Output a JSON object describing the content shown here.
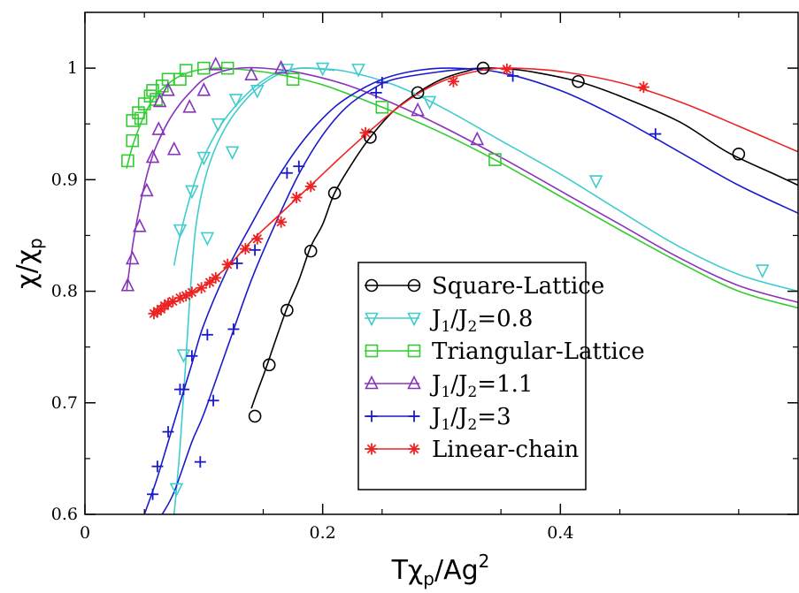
{
  "chart_data": {
    "type": "line",
    "xlabel": {
      "base": "Tχ",
      "sub": "p",
      "rest": "/Ag",
      "sup": "2"
    },
    "ylabel": {
      "base": "χ/χ",
      "sub": "p"
    },
    "xlim": [
      0,
      0.6
    ],
    "ylim": [
      0.6,
      1.05
    ],
    "x_ticks": [
      {
        "v": 0,
        "label": "0"
      },
      {
        "v": 0.2,
        "label": "0.2"
      },
      {
        "v": 0.4,
        "label": "0.4"
      }
    ],
    "y_ticks": [
      {
        "v": 0.6,
        "label": "0.6"
      },
      {
        "v": 0.7,
        "label": "0.7"
      },
      {
        "v": 0.8,
        "label": "0.8"
      },
      {
        "v": 0.9,
        "label": "0.9"
      },
      {
        "v": 1.0,
        "label": "1"
      }
    ],
    "grid": false,
    "legend_position": "lower-right",
    "series": [
      {
        "name": "Square-Lattice",
        "legend": {
          "base": "Square-Lattice"
        },
        "color": "#000000",
        "marker": "circle",
        "line_points": [
          [
            0.14,
            0.695
          ],
          [
            0.145,
            0.71
          ],
          [
            0.152,
            0.73
          ],
          [
            0.16,
            0.755
          ],
          [
            0.17,
            0.785
          ],
          [
            0.18,
            0.81
          ],
          [
            0.19,
            0.84
          ],
          [
            0.2,
            0.86
          ],
          [
            0.21,
            0.888
          ],
          [
            0.225,
            0.915
          ],
          [
            0.24,
            0.938
          ],
          [
            0.26,
            0.962
          ],
          [
            0.28,
            0.978
          ],
          [
            0.3,
            0.99
          ],
          [
            0.32,
            0.997
          ],
          [
            0.335,
            1.0
          ],
          [
            0.36,
            0.999
          ],
          [
            0.38,
            0.996
          ],
          [
            0.415,
            0.988
          ],
          [
            0.45,
            0.975
          ],
          [
            0.5,
            0.952
          ],
          [
            0.54,
            0.925
          ],
          [
            0.58,
            0.905
          ],
          [
            0.6,
            0.895
          ]
        ],
        "markers": [
          [
            0.143,
            0.688
          ],
          [
            0.155,
            0.734
          ],
          [
            0.17,
            0.783
          ],
          [
            0.19,
            0.836
          ],
          [
            0.21,
            0.888
          ],
          [
            0.24,
            0.938
          ],
          [
            0.28,
            0.978
          ],
          [
            0.335,
            1.0
          ],
          [
            0.415,
            0.988
          ],
          [
            0.55,
            0.923
          ]
        ]
      },
      {
        "name": "J1/J2=0.8",
        "legend": {
          "base": "J",
          "sub": "1",
          "mid": "/J",
          "sub2": "2",
          "rest": "=0.8"
        },
        "color": "#40cccc",
        "marker": "triangle-down",
        "line_points": [
          [
            0.075,
            0.823
          ],
          [
            0.08,
            0.85
          ],
          [
            0.09,
            0.89
          ],
          [
            0.1,
            0.92
          ],
          [
            0.115,
            0.95
          ],
          [
            0.13,
            0.97
          ],
          [
            0.145,
            0.985
          ],
          [
            0.16,
            0.995
          ],
          [
            0.175,
            0.999
          ],
          [
            0.19,
            1.0
          ],
          [
            0.22,
            0.997
          ],
          [
            0.26,
            0.985
          ],
          [
            0.3,
            0.965
          ],
          [
            0.35,
            0.935
          ],
          [
            0.4,
            0.905
          ],
          [
            0.45,
            0.872
          ],
          [
            0.5,
            0.84
          ],
          [
            0.55,
            0.815
          ],
          [
            0.6,
            0.8
          ]
        ],
        "line_points_2": [
          [
            0.075,
            0.6
          ],
          [
            0.08,
            0.66
          ],
          [
            0.085,
            0.74
          ],
          [
            0.09,
            0.82
          ],
          [
            0.095,
            0.87
          ],
          [
            0.105,
            0.915
          ],
          [
            0.12,
            0.95
          ],
          [
            0.14,
            0.977
          ],
          [
            0.16,
            0.993
          ],
          [
            0.18,
            1.0
          ],
          [
            0.21,
            0.998
          ]
        ],
        "markers": [
          [
            0.077,
            0.623
          ],
          [
            0.083,
            0.743
          ],
          [
            0.08,
            0.855
          ],
          [
            0.09,
            0.89
          ],
          [
            0.1,
            0.92
          ],
          [
            0.103,
            0.848
          ],
          [
            0.112,
            0.95
          ],
          [
            0.124,
            0.925
          ],
          [
            0.127,
            0.972
          ],
          [
            0.145,
            0.98
          ],
          [
            0.17,
            0.999
          ],
          [
            0.2,
            1.0
          ],
          [
            0.23,
            0.999
          ],
          [
            0.29,
            0.97
          ],
          [
            0.43,
            0.899
          ],
          [
            0.57,
            0.819
          ]
        ]
      },
      {
        "name": "Triangular-Lattice",
        "legend": {
          "base": "Triangular-Lattice"
        },
        "color": "#33cc33",
        "marker": "square",
        "line_points": [
          [
            0.035,
            0.91
          ],
          [
            0.04,
            0.93
          ],
          [
            0.045,
            0.945
          ],
          [
            0.05,
            0.958
          ],
          [
            0.055,
            0.968
          ],
          [
            0.06,
            0.976
          ],
          [
            0.07,
            0.986
          ],
          [
            0.08,
            0.993
          ],
          [
            0.09,
            0.997
          ],
          [
            0.1,
            0.999
          ],
          [
            0.115,
            1.0
          ],
          [
            0.13,
            0.999
          ],
          [
            0.16,
            0.995
          ],
          [
            0.2,
            0.985
          ],
          [
            0.25,
            0.965
          ],
          [
            0.3,
            0.942
          ],
          [
            0.35,
            0.915
          ],
          [
            0.4,
            0.885
          ],
          [
            0.45,
            0.855
          ],
          [
            0.5,
            0.826
          ],
          [
            0.55,
            0.8
          ],
          [
            0.6,
            0.785
          ]
        ],
        "markers": [
          [
            0.036,
            0.917
          ],
          [
            0.04,
            0.935
          ],
          [
            0.04,
            0.953
          ],
          [
            0.045,
            0.96
          ],
          [
            0.047,
            0.955
          ],
          [
            0.05,
            0.968
          ],
          [
            0.055,
            0.975
          ],
          [
            0.057,
            0.98
          ],
          [
            0.06,
            0.972
          ],
          [
            0.065,
            0.984
          ],
          [
            0.07,
            0.99
          ],
          [
            0.08,
            0.99
          ],
          [
            0.085,
            0.998
          ],
          [
            0.1,
            1.0
          ],
          [
            0.12,
            1.0
          ],
          [
            0.175,
            0.99
          ],
          [
            0.25,
            0.965
          ],
          [
            0.345,
            0.918
          ]
        ]
      },
      {
        "name": "J1/J2=1.1",
        "legend": {
          "base": "J",
          "sub": "1",
          "mid": "/J",
          "sub2": "2",
          "rest": "=1.1"
        },
        "color": "#8833bb",
        "marker": "triangle-up",
        "line_points": [
          [
            0.035,
            0.8
          ],
          [
            0.04,
            0.84
          ],
          [
            0.045,
            0.87
          ],
          [
            0.05,
            0.895
          ],
          [
            0.055,
            0.915
          ],
          [
            0.06,
            0.93
          ],
          [
            0.07,
            0.952
          ],
          [
            0.08,
            0.968
          ],
          [
            0.09,
            0.98
          ],
          [
            0.1,
            0.99
          ],
          [
            0.115,
            0.997
          ],
          [
            0.13,
            1.0
          ],
          [
            0.15,
            1.0
          ],
          [
            0.18,
            0.996
          ],
          [
            0.22,
            0.985
          ],
          [
            0.26,
            0.968
          ],
          [
            0.3,
            0.948
          ],
          [
            0.35,
            0.92
          ],
          [
            0.4,
            0.89
          ],
          [
            0.45,
            0.86
          ],
          [
            0.5,
            0.83
          ],
          [
            0.55,
            0.805
          ],
          [
            0.6,
            0.79
          ]
        ],
        "markers": [
          [
            0.036,
            0.805
          ],
          [
            0.04,
            0.829
          ],
          [
            0.046,
            0.858
          ],
          [
            0.052,
            0.89
          ],
          [
            0.057,
            0.92
          ],
          [
            0.062,
            0.945
          ],
          [
            0.075,
            0.927
          ],
          [
            0.088,
            0.965
          ],
          [
            0.1,
            0.98
          ],
          [
            0.11,
            1.003
          ],
          [
            0.14,
            0.994
          ],
          [
            0.165,
            1.0
          ],
          [
            0.28,
            0.962
          ],
          [
            0.33,
            0.936
          ],
          [
            0.063,
            0.97
          ],
          [
            0.07,
            0.98
          ]
        ]
      },
      {
        "name": "J1/J2=3",
        "legend": {
          "base": "J",
          "sub": "1",
          "mid": "/J",
          "sub2": "2",
          "rest": "=3"
        },
        "color": "#1a1acc",
        "marker": "plus",
        "line_points": [
          [
            0.05,
            0.6
          ],
          [
            0.06,
            0.63
          ],
          [
            0.07,
            0.665
          ],
          [
            0.08,
            0.7
          ],
          [
            0.09,
            0.735
          ],
          [
            0.1,
            0.77
          ],
          [
            0.12,
            0.82
          ],
          [
            0.14,
            0.86
          ],
          [
            0.16,
            0.898
          ],
          [
            0.18,
            0.93
          ],
          [
            0.2,
            0.955
          ],
          [
            0.22,
            0.973
          ],
          [
            0.25,
            0.99
          ],
          [
            0.28,
            0.998
          ],
          [
            0.31,
            1.0
          ],
          [
            0.35,
            0.996
          ],
          [
            0.4,
            0.98
          ],
          [
            0.45,
            0.955
          ],
          [
            0.5,
            0.925
          ],
          [
            0.55,
            0.895
          ],
          [
            0.6,
            0.87
          ]
        ],
        "line_points_2": [
          [
            0.065,
            0.6
          ],
          [
            0.075,
            0.62
          ],
          [
            0.09,
            0.665
          ],
          [
            0.1,
            0.69
          ],
          [
            0.12,
            0.75
          ],
          [
            0.14,
            0.81
          ],
          [
            0.16,
            0.86
          ],
          [
            0.18,
            0.905
          ],
          [
            0.2,
            0.94
          ],
          [
            0.22,
            0.965
          ],
          [
            0.24,
            0.98
          ],
          [
            0.26,
            0.99
          ],
          [
            0.3,
            0.997
          ],
          [
            0.33,
            1.0
          ]
        ],
        "markers": [
          [
            0.057,
            0.618
          ],
          [
            0.061,
            0.643
          ],
          [
            0.07,
            0.674
          ],
          [
            0.08,
            0.712
          ],
          [
            0.09,
            0.742
          ],
          [
            0.083,
            0.712
          ],
          [
            0.097,
            0.647
          ],
          [
            0.103,
            0.761
          ],
          [
            0.108,
            0.702
          ],
          [
            0.125,
            0.766
          ],
          [
            0.128,
            0.825
          ],
          [
            0.143,
            0.837
          ],
          [
            0.17,
            0.906
          ],
          [
            0.18,
            0.912
          ],
          [
            0.245,
            0.978
          ],
          [
            0.25,
            0.987
          ],
          [
            0.36,
            0.993
          ],
          [
            0.48,
            0.941
          ]
        ]
      },
      {
        "name": "Linear-chain",
        "legend": {
          "base": "Linear-chain"
        },
        "color": "#ee2222",
        "marker": "asterisk",
        "line_points": [
          [
            0.058,
            0.78
          ],
          [
            0.065,
            0.785
          ],
          [
            0.075,
            0.79
          ],
          [
            0.09,
            0.798
          ],
          [
            0.1,
            0.805
          ],
          [
            0.12,
            0.822
          ],
          [
            0.14,
            0.845
          ],
          [
            0.16,
            0.865
          ],
          [
            0.18,
            0.885
          ],
          [
            0.2,
            0.905
          ],
          [
            0.22,
            0.925
          ],
          [
            0.24,
            0.944
          ],
          [
            0.26,
            0.962
          ],
          [
            0.28,
            0.977
          ],
          [
            0.3,
            0.988
          ],
          [
            0.32,
            0.995
          ],
          [
            0.34,
            0.999
          ],
          [
            0.36,
            1.0
          ],
          [
            0.4,
            0.997
          ],
          [
            0.45,
            0.987
          ],
          [
            0.5,
            0.97
          ],
          [
            0.55,
            0.948
          ],
          [
            0.6,
            0.925
          ]
        ],
        "markers": [
          [
            0.058,
            0.78
          ],
          [
            0.061,
            0.782
          ],
          [
            0.064,
            0.784
          ],
          [
            0.067,
            0.787
          ],
          [
            0.07,
            0.789
          ],
          [
            0.074,
            0.791
          ],
          [
            0.08,
            0.794
          ],
          [
            0.085,
            0.796
          ],
          [
            0.09,
            0.799
          ],
          [
            0.098,
            0.803
          ],
          [
            0.105,
            0.808
          ],
          [
            0.11,
            0.812
          ],
          [
            0.12,
            0.824
          ],
          [
            0.135,
            0.838
          ],
          [
            0.145,
            0.847
          ],
          [
            0.165,
            0.862
          ],
          [
            0.178,
            0.884
          ],
          [
            0.19,
            0.894
          ],
          [
            0.236,
            0.942
          ],
          [
            0.31,
            0.988
          ],
          [
            0.355,
            0.999
          ],
          [
            0.47,
            0.983
          ]
        ]
      }
    ]
  }
}
